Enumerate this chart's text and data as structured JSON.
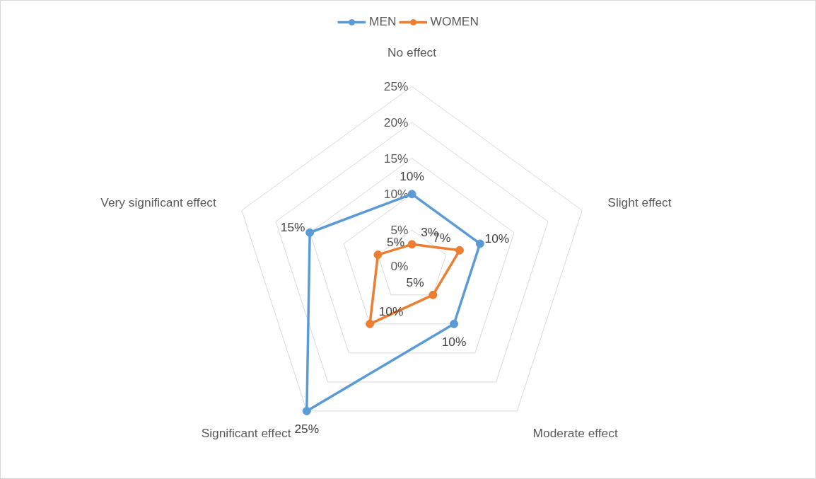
{
  "chart_data": {
    "type": "radar",
    "categories": [
      "No effect",
      "Slight effect",
      "Moderate effect",
      "Significant effect",
      "Very significant effect"
    ],
    "series": [
      {
        "name": "MEN",
        "color": "#5b9bd5",
        "values": [
          10,
          10,
          10,
          25,
          15
        ],
        "value_labels": [
          "10%",
          "10%",
          "10%",
          "25%",
          "15%"
        ]
      },
      {
        "name": "WOMEN",
        "color": "#ed7d31",
        "values": [
          3,
          7,
          5,
          10,
          5
        ],
        "value_labels": [
          "3%",
          "7%",
          "5%",
          "10%",
          "5%"
        ]
      }
    ],
    "ylim": [
      0,
      25
    ],
    "yticks": [
      {
        "value": 0,
        "label": "0%"
      },
      {
        "value": 5,
        "label": "5%"
      },
      {
        "value": 10,
        "label": "10%"
      },
      {
        "value": 15,
        "label": "15%"
      },
      {
        "value": 20,
        "label": "20%"
      },
      {
        "value": 25,
        "label": "25%"
      }
    ],
    "grid": true,
    "legend": "top",
    "marker": "circle"
  }
}
